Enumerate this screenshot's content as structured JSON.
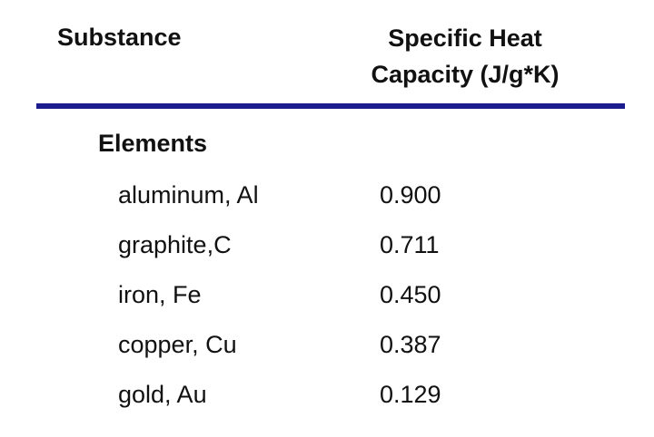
{
  "table": {
    "header": [
      "Substance",
      "Specific Heat Capacity (J/g*K)"
    ],
    "group": "Elements",
    "rows": [
      [
        "aluminum, Al",
        "0.900"
      ],
      [
        "graphite,C",
        "0.711"
      ],
      [
        "iron, Fe",
        "0.450"
      ],
      [
        "copper, Cu",
        "0.387"
      ],
      [
        "gold, Au",
        "0.129"
      ]
    ]
  }
}
